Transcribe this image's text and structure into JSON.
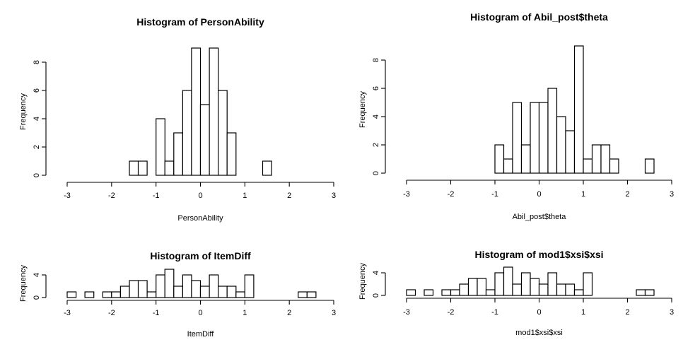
{
  "chart_data": [
    {
      "type": "bar",
      "title": "Histogram of PersonAbility",
      "xlabel": "PersonAbility",
      "ylabel": "Frequency",
      "xlim": [
        -3,
        3
      ],
      "ylim": [
        0,
        9
      ],
      "x_ticks": [
        "-3",
        "-2",
        "-1",
        "0",
        "1",
        "2",
        "3"
      ],
      "y_ticks": [
        "0",
        "2",
        "4",
        "6",
        "8"
      ],
      "bin_width": 0.2,
      "bin_start": -1.6,
      "values": [
        1,
        1,
        0,
        4,
        1,
        3,
        6,
        9,
        5,
        9,
        6,
        3,
        0,
        0,
        0,
        1
      ]
    },
    {
      "type": "bar",
      "title": "Histogram of Abil_post$theta",
      "xlabel": "Abil_post$theta",
      "ylabel": "Frequency",
      "xlim": [
        -3,
        3
      ],
      "ylim": [
        0,
        9
      ],
      "x_ticks": [
        "-3",
        "-2",
        "-1",
        "0",
        "1",
        "2",
        "3"
      ],
      "y_ticks": [
        "0",
        "2",
        "4",
        "6",
        "8"
      ],
      "bin_width": 0.2,
      "bin_start": -1.0,
      "values": [
        2,
        1,
        5,
        2,
        5,
        5,
        6,
        4,
        3,
        9,
        1,
        2,
        2,
        1,
        0,
        0,
        0,
        1
      ]
    },
    {
      "type": "bar",
      "title": "Histogram of ItemDiff",
      "xlabel": "ItemDiff",
      "ylabel": "Frequency",
      "xlim": [
        -3,
        3
      ],
      "ylim": [
        0,
        5
      ],
      "x_ticks": [
        "-3",
        "-2",
        "-1",
        "0",
        "1",
        "2",
        "3"
      ],
      "y_ticks": [
        "0",
        "4"
      ],
      "bin_width": 0.2,
      "bin_start": -3.0,
      "values": [
        1,
        0,
        1,
        0,
        1,
        1,
        2,
        3,
        3,
        1,
        4,
        5,
        2,
        4,
        3,
        2,
        4,
        2,
        2,
        1,
        4,
        0,
        0,
        0,
        0,
        0,
        1,
        1
      ]
    },
    {
      "type": "bar",
      "title": "Histogram of mod1$xsi$xsi",
      "xlabel": "mod1$xsi$xsi",
      "ylabel": "Frequency",
      "xlim": [
        -3,
        3
      ],
      "ylim": [
        0,
        5
      ],
      "x_ticks": [
        "-3",
        "-2",
        "-1",
        "0",
        "1",
        "2",
        "3"
      ],
      "y_ticks": [
        "0",
        "4"
      ],
      "bin_width": 0.2,
      "bin_start": -3.0,
      "values": [
        1,
        0,
        1,
        0,
        1,
        1,
        2,
        3,
        3,
        1,
        4,
        5,
        2,
        4,
        3,
        2,
        4,
        2,
        2,
        1,
        4,
        0,
        0,
        0,
        0,
        0,
        1,
        1
      ]
    }
  ]
}
